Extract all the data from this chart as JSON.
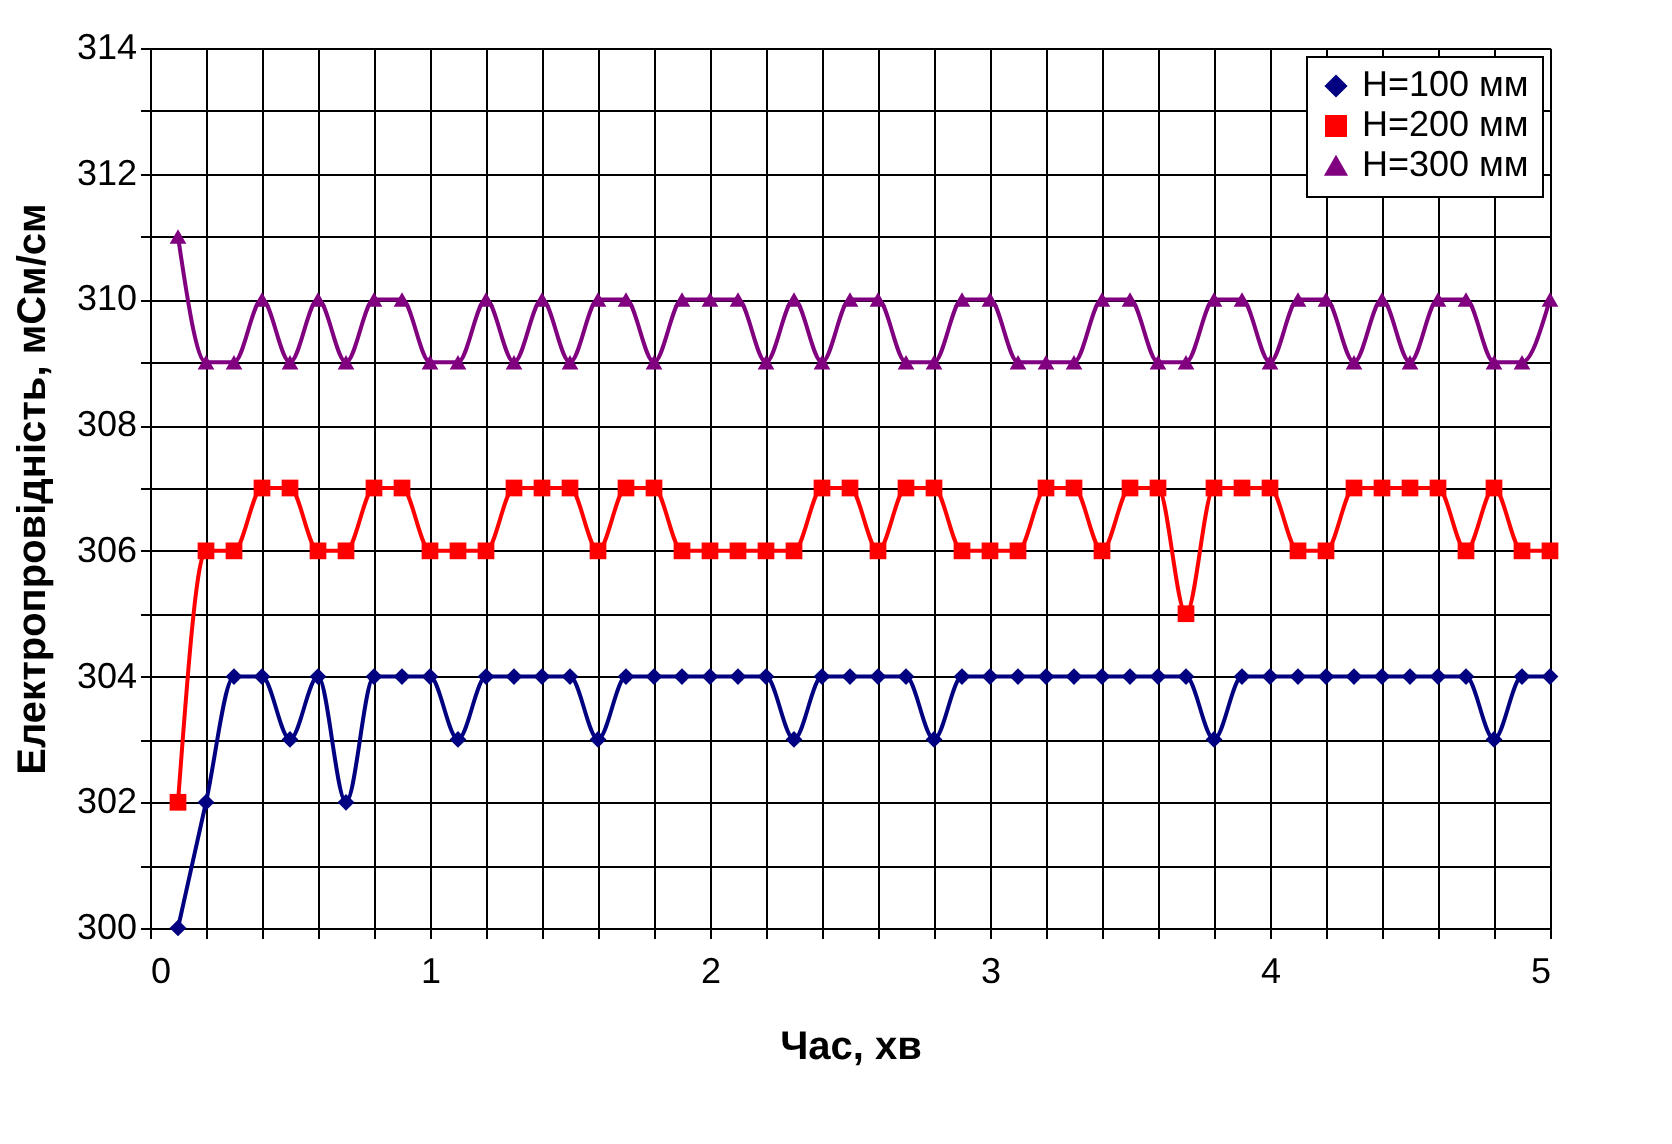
{
  "chart_data": {
    "type": "line",
    "xlabel": "Час, хв",
    "ylabel": "Електропровідність, мСм/см",
    "x": [
      0.1,
      0.2,
      0.3,
      0.4,
      0.5,
      0.6,
      0.7,
      0.8,
      0.9,
      1.0,
      1.1,
      1.2,
      1.3,
      1.4,
      1.5,
      1.6,
      1.7,
      1.8,
      1.9,
      2.0,
      2.1,
      2.2,
      2.3,
      2.4,
      2.5,
      2.6,
      2.7,
      2.8,
      2.9,
      3.0,
      3.1,
      3.2,
      3.3,
      3.4,
      3.5,
      3.6,
      3.7,
      3.8,
      3.9,
      4.0,
      4.1,
      4.2,
      4.3,
      4.4,
      4.5,
      4.6,
      4.7,
      4.8,
      4.9,
      5.0
    ],
    "series": [
      {
        "name": "H=100 мм",
        "color": "#000080",
        "marker": "diamond",
        "values": [
          300,
          302,
          304,
          304,
          303,
          304,
          302,
          304,
          304,
          304,
          303,
          304,
          304,
          304,
          304,
          303,
          304,
          304,
          304,
          304,
          304,
          304,
          303,
          304,
          304,
          304,
          304,
          303,
          304,
          304,
          304,
          304,
          304,
          304,
          304,
          304,
          304,
          303,
          304,
          304,
          304,
          304,
          304,
          304,
          304,
          304,
          304,
          303,
          304,
          304
        ]
      },
      {
        "name": "H=200 мм",
        "color": "#ff0000",
        "marker": "square",
        "values": [
          302,
          306,
          306,
          307,
          307,
          306,
          306,
          307,
          307,
          306,
          306,
          306,
          307,
          307,
          307,
          306,
          307,
          307,
          306,
          306,
          306,
          306,
          306,
          307,
          307,
          306,
          307,
          307,
          306,
          306,
          306,
          307,
          307,
          306,
          307,
          307,
          305,
          307,
          307,
          307,
          306,
          306,
          307,
          307,
          307,
          307,
          306,
          307,
          306,
          306
        ]
      },
      {
        "name": "H=300 мм",
        "color": "#800080",
        "marker": "triangle",
        "values": [
          311,
          309,
          309,
          310,
          309,
          310,
          309,
          310,
          310,
          309,
          309,
          310,
          309,
          310,
          309,
          310,
          310,
          309,
          310,
          310,
          310,
          309,
          310,
          309,
          310,
          310,
          309,
          309,
          310,
          310,
          309,
          309,
          309,
          310,
          310,
          309,
          309,
          310,
          310,
          309,
          310,
          310,
          309,
          310,
          309,
          310,
          310,
          309,
          309,
          310
        ]
      }
    ],
    "xlim": [
      0,
      5
    ],
    "xticks": [
      0,
      {
        "value": 0.2,
        "label": null
      },
      {
        "value": 0.4,
        "label": null
      },
      {
        "value": 0.6,
        "label": null
      },
      {
        "value": 0.8,
        "label": null
      },
      1,
      {
        "value": 1.2,
        "label": null
      },
      {
        "value": 1.4,
        "label": null
      },
      {
        "value": 1.6,
        "label": null
      },
      {
        "value": 1.8,
        "label": null
      },
      2,
      {
        "value": 2.2,
        "label": null
      },
      {
        "value": 2.4,
        "label": null
      },
      {
        "value": 2.6,
        "label": null
      },
      {
        "value": 2.8,
        "label": null
      },
      3,
      {
        "value": 3.2,
        "label": null
      },
      {
        "value": 3.4,
        "label": null
      },
      {
        "value": 3.6,
        "label": null
      },
      {
        "value": 3.8,
        "label": null
      },
      4,
      {
        "value": 4.2,
        "label": null
      },
      {
        "value": 4.4,
        "label": null
      },
      {
        "value": 4.6,
        "label": null
      },
      {
        "value": 4.8,
        "label": null
      },
      5
    ],
    "ylim": [
      300,
      314
    ],
    "yticks": [
      300,
      {
        "value": 301,
        "label": null
      },
      302,
      {
        "value": 303,
        "label": null
      },
      304,
      {
        "value": 305,
        "label": null
      },
      306,
      {
        "value": 307,
        "label": null
      },
      308,
      {
        "value": 309,
        "label": null
      },
      310,
      {
        "value": 311,
        "label": null
      },
      312,
      {
        "value": 313,
        "label": null
      },
      314
    ],
    "grid": true,
    "legend": "top right",
    "line_style": "solid"
  }
}
